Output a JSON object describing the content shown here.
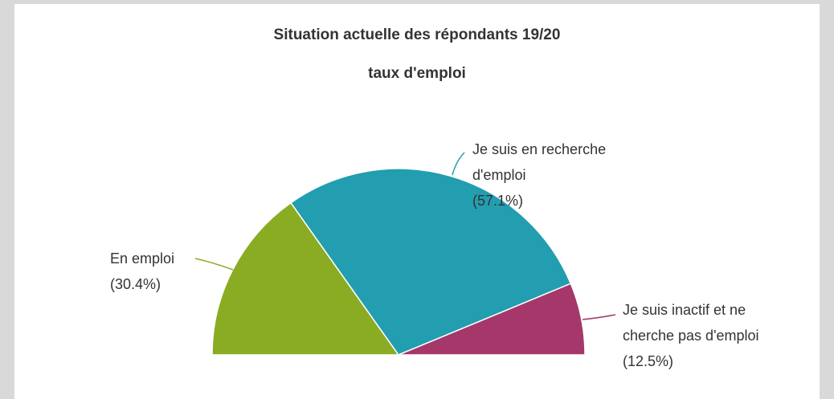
{
  "chart_data": {
    "type": "semi-pie",
    "title": "Situation actuelle des répondants 19/20",
    "subtitle": "taux d'emploi",
    "categories": [
      "En emploi",
      "Je suis en recherche d'emploi",
      "Je suis inactif et ne cherche pas d'emploi"
    ],
    "values": [
      30.4,
      57.1,
      12.5
    ],
    "value_labels": [
      "(30.4%)",
      "(57.1%)",
      "(12.5%)"
    ],
    "colors": [
      "#8aac23",
      "#239db0",
      "#a5376a"
    ]
  }
}
